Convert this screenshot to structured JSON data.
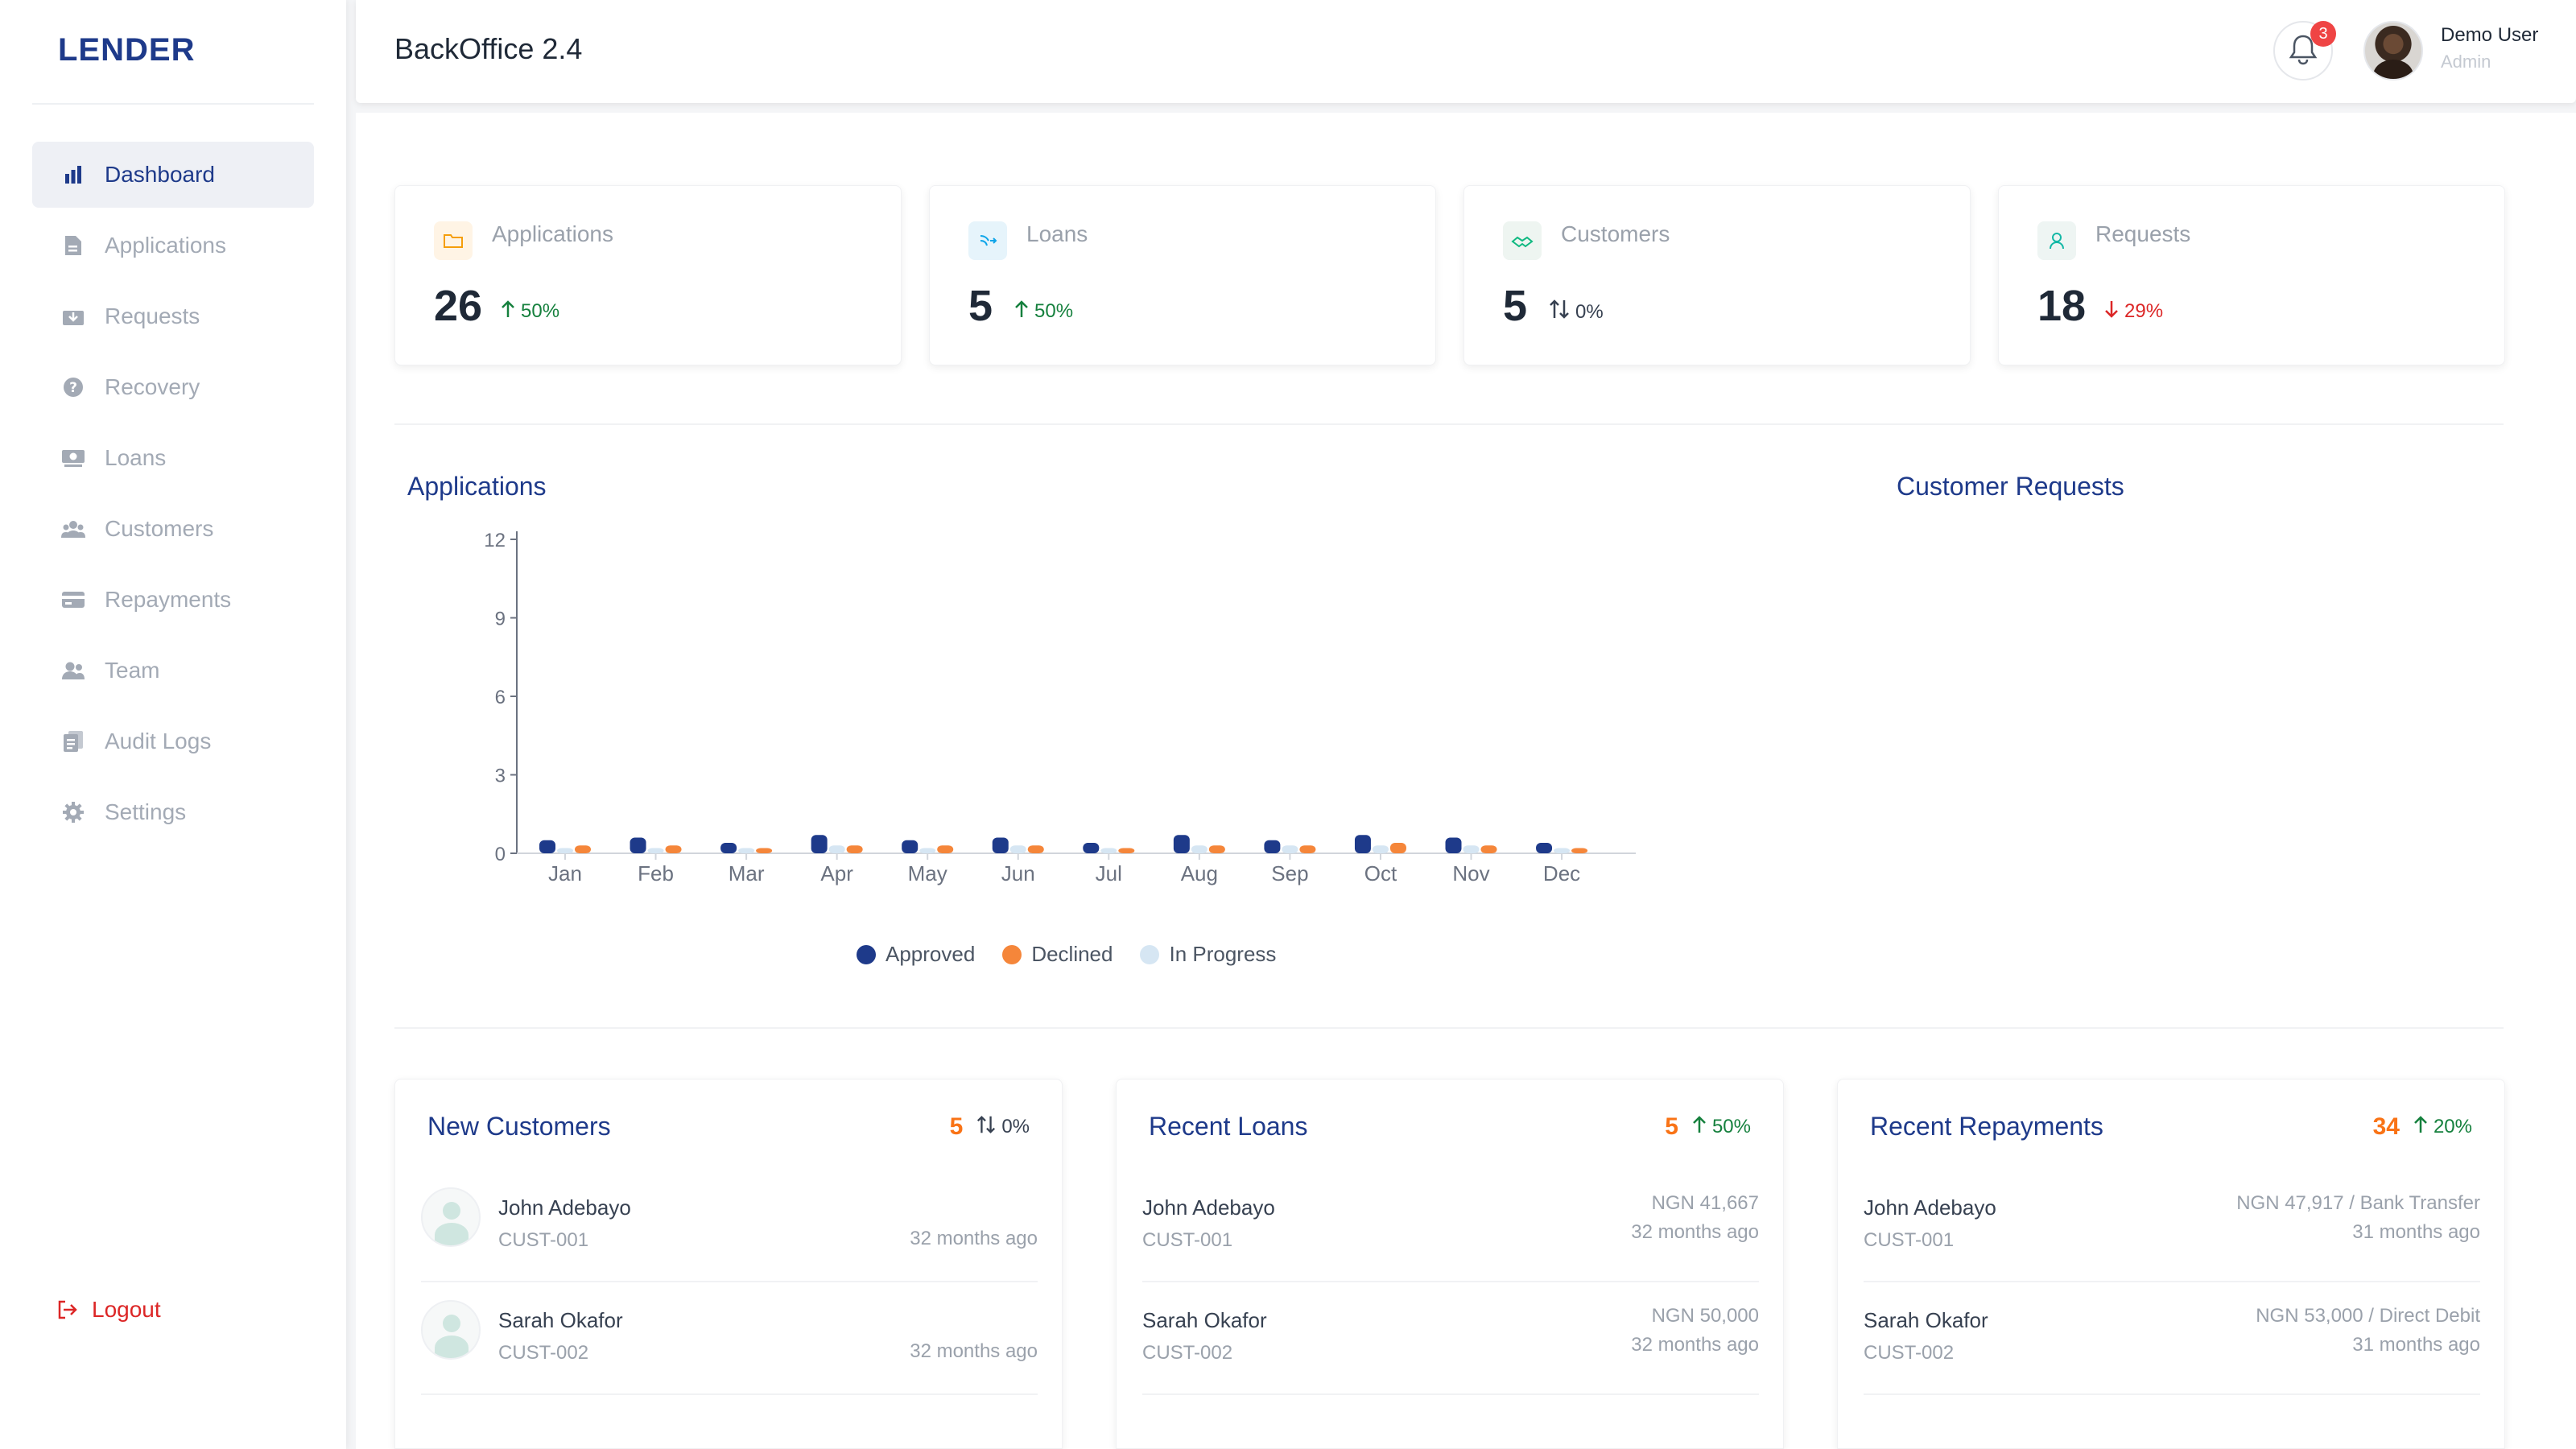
{
  "sidebar": {
    "brand": "LENDER",
    "items": [
      {
        "label": "Dashboard",
        "icon": "bar-chart-icon",
        "active": true
      },
      {
        "label": "Applications",
        "icon": "document-icon",
        "active": false
      },
      {
        "label": "Requests",
        "icon": "inbox-download-icon",
        "active": false
      },
      {
        "label": "Recovery",
        "icon": "question-circle-icon",
        "active": false
      },
      {
        "label": "Loans",
        "icon": "money-icon",
        "active": false
      },
      {
        "label": "Customers",
        "icon": "users-group-icon",
        "active": false
      },
      {
        "label": "Repayments",
        "icon": "credit-card-icon",
        "active": false
      },
      {
        "label": "Team",
        "icon": "team-icon",
        "active": false
      },
      {
        "label": "Audit Logs",
        "icon": "clipboard-icon",
        "active": false
      },
      {
        "label": "Settings",
        "icon": "gear-icon",
        "active": false
      }
    ],
    "logout": "Logout"
  },
  "header": {
    "title": "BackOffice 2.4",
    "notifications": "3",
    "user_name": "Demo User",
    "user_role": "Admin"
  },
  "stats": [
    {
      "label": "Applications",
      "value": "26",
      "trend": "50%",
      "direction": "up",
      "icon": "folder-icon",
      "icon_bg": "#fff4e5",
      "icon_color": "#f59e0b"
    },
    {
      "label": "Loans",
      "value": "5",
      "trend": "50%",
      "direction": "up",
      "icon": "money-send-icon",
      "icon_bg": "#e6f4fb",
      "icon_color": "#0ea5e9"
    },
    {
      "label": "Customers",
      "value": "5",
      "trend": "0%",
      "direction": "flat",
      "icon": "handshake-icon",
      "icon_bg": "#eef5f1",
      "icon_color": "#10b981"
    },
    {
      "label": "Requests",
      "value": "18",
      "trend": "29%",
      "direction": "down",
      "icon": "user-icon",
      "icon_bg": "#eef5f3",
      "icon_color": "#14b8a6"
    }
  ],
  "sections": {
    "applications_title": "Applications",
    "customer_requests_title": "Customer Requests"
  },
  "chart_data": {
    "type": "bar",
    "categories": [
      "Jan",
      "Feb",
      "Mar",
      "Apr",
      "May",
      "Jun",
      "Jul",
      "Aug",
      "Sep",
      "Oct",
      "Nov",
      "Dec"
    ],
    "series": [
      {
        "name": "Approved",
        "color": "#1e3a8a",
        "values": [
          0.5,
          0.6,
          0.4,
          0.7,
          0.5,
          0.6,
          0.4,
          0.7,
          0.5,
          0.7,
          0.6,
          0.4
        ]
      },
      {
        "name": "Declined",
        "color": "#f5863a",
        "values": [
          0.3,
          0.3,
          0.2,
          0.3,
          0.3,
          0.3,
          0.2,
          0.3,
          0.3,
          0.4,
          0.3,
          0.2
        ]
      },
      {
        "name": "In Progress",
        "color": "#d6e6f3",
        "values": [
          0.2,
          0.2,
          0.2,
          0.3,
          0.2,
          0.3,
          0.2,
          0.3,
          0.3,
          0.3,
          0.3,
          0.2
        ]
      }
    ],
    "yticks": [
      0,
      3,
      6,
      9,
      12
    ],
    "ylim": [
      0,
      12
    ],
    "legend": "bottom",
    "grid": false
  },
  "new_customers": {
    "title": "New Customers",
    "count": "5",
    "trend": "0%",
    "direction": "flat",
    "rows": [
      {
        "name": "John Adebayo",
        "id": "CUST-001",
        "time": "32 months ago"
      },
      {
        "name": "Sarah Okafor",
        "id": "CUST-002",
        "time": "32 months ago"
      }
    ]
  },
  "recent_loans": {
    "title": "Recent Loans",
    "count": "5",
    "trend": "50%",
    "direction": "up",
    "rows": [
      {
        "name": "John Adebayo",
        "id": "CUST-001",
        "amount": "NGN 41,667",
        "time": "32 months ago"
      },
      {
        "name": "Sarah Okafor",
        "id": "CUST-002",
        "amount": "NGN 50,000",
        "time": "32 months ago"
      }
    ]
  },
  "recent_repayments": {
    "title": "Recent Repayments",
    "count": "34",
    "trend": "20%",
    "direction": "up",
    "rows": [
      {
        "name": "John Adebayo",
        "id": "CUST-001",
        "amount": "NGN 47,917 / Bank Transfer",
        "time": "31 months ago"
      },
      {
        "name": "Sarah Okafor",
        "id": "CUST-002",
        "amount": "NGN 53,000 / Direct Debit",
        "time": "31 months ago"
      }
    ]
  }
}
